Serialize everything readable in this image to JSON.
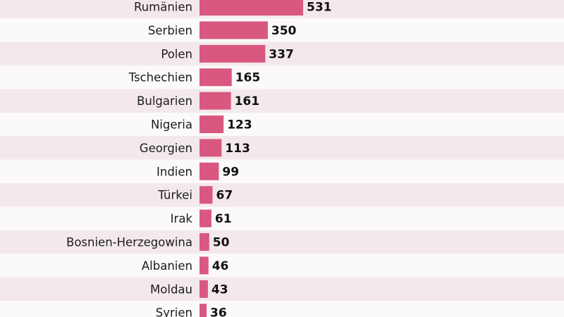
{
  "chart_data": {
    "type": "bar",
    "orientation": "horizontal",
    "categories": [
      "Rumänien",
      "Serbien",
      "Polen",
      "Tschechien",
      "Bulgarien",
      "Nigeria",
      "Georgien",
      "Indien",
      "Türkei",
      "Irak",
      "Bosnien-Herzegowina",
      "Albanien",
      "Moldau",
      "Syrien"
    ],
    "values": [
      531,
      350,
      337,
      165,
      161,
      123,
      113,
      99,
      67,
      61,
      50,
      46,
      43,
      36
    ],
    "value_labels": [
      "531",
      "350",
      "337",
      "165",
      "161",
      "123",
      "113",
      "99",
      "67",
      "61",
      "50",
      "46",
      "43",
      "36"
    ],
    "grid": false,
    "colors": {
      "bar": "#d9587f",
      "band_even": "#f3e9ec",
      "band_odd": "#fbf9f9",
      "label": "#1c1c1c",
      "value": "#111111"
    }
  }
}
